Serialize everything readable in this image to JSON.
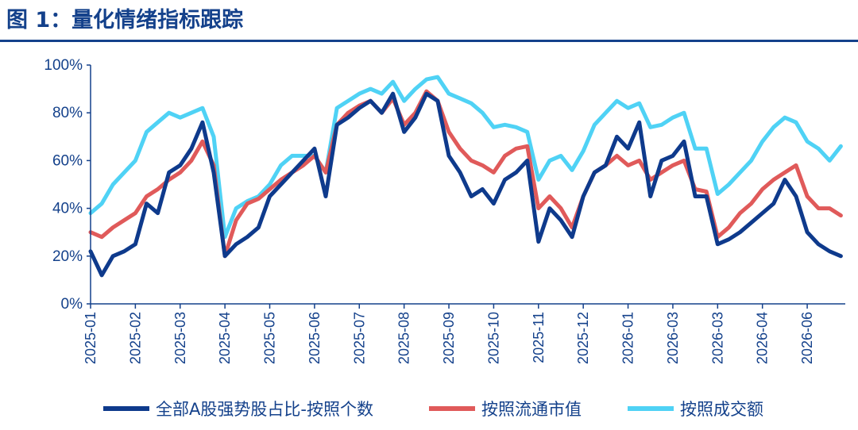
{
  "figure": {
    "title": "图 1：量化情绪指标跟踪"
  },
  "chart_data": {
    "type": "line",
    "title": "",
    "xlabel": "",
    "ylabel": "",
    "ylim": [
      0,
      100
    ],
    "y_ticks": [
      "0%",
      "20%",
      "40%",
      "60%",
      "80%",
      "100%"
    ],
    "x_ticks": [
      "2025-01",
      "2025-02",
      "2025-03",
      "2025-04",
      "2025-05",
      "2025-06",
      "2025-07",
      "2025-08",
      "2025-09",
      "2025-10",
      "2025-11",
      "2025-12",
      "2026-01",
      "2026-03",
      "2026-03",
      "2026-04",
      "2026-06"
    ],
    "legend_position": "bottom",
    "x": [
      0,
      0.25,
      0.5,
      0.75,
      1,
      1.25,
      1.5,
      1.75,
      2,
      2.25,
      2.5,
      2.75,
      3,
      3.25,
      3.5,
      3.75,
      4,
      4.25,
      4.5,
      4.75,
      5,
      5.25,
      5.5,
      5.75,
      6,
      6.25,
      6.5,
      6.75,
      7,
      7.25,
      7.5,
      7.75,
      8,
      8.25,
      8.5,
      8.75,
      9,
      9.25,
      9.5,
      9.75,
      10,
      10.25,
      10.5,
      10.75,
      11,
      11.25,
      11.5,
      11.75,
      12,
      12.25,
      12.5,
      12.75,
      13,
      13.25,
      13.5,
      13.75,
      14,
      14.25,
      14.5,
      14.75,
      15,
      15.25,
      15.5,
      15.75,
      16,
      16.25,
      16.5,
      16.75
    ],
    "series": [
      {
        "name": "全部A股强势股占比-按照个数",
        "color": "#0e3a8c",
        "values": [
          22,
          12,
          20,
          22,
          25,
          42,
          38,
          55,
          58,
          65,
          76,
          55,
          20,
          25,
          28,
          32,
          45,
          50,
          55,
          60,
          65,
          45,
          75,
          78,
          82,
          85,
          80,
          88,
          72,
          78,
          88,
          85,
          62,
          55,
          45,
          48,
          42,
          52,
          55,
          60,
          26,
          40,
          35,
          28,
          45,
          55,
          58,
          70,
          65,
          76,
          45,
          60,
          62,
          68,
          45,
          45,
          25,
          27,
          30,
          34,
          38,
          42,
          52,
          45,
          30,
          25,
          22,
          20
        ],
        "fill": false
      },
      {
        "name": "按照流通市值",
        "color": "#e05a5a",
        "values": [
          30,
          28,
          32,
          35,
          38,
          45,
          48,
          52,
          55,
          60,
          68,
          58,
          20,
          35,
          42,
          44,
          48,
          52,
          55,
          58,
          62,
          55,
          75,
          80,
          83,
          85,
          80,
          86,
          75,
          80,
          89,
          85,
          72,
          65,
          60,
          58,
          55,
          62,
          65,
          66,
          40,
          45,
          40,
          32,
          45,
          55,
          58,
          62,
          58,
          60,
          52,
          55,
          58,
          60,
          48,
          47,
          28,
          32,
          38,
          42,
          48,
          52,
          55,
          58,
          45,
          40,
          40,
          37
        ],
        "fill": false
      },
      {
        "name": "按照成交额",
        "color": "#4fd2f5",
        "values": [
          38,
          42,
          50,
          55,
          60,
          72,
          76,
          80,
          78,
          80,
          82,
          70,
          28,
          40,
          43,
          45,
          50,
          58,
          62,
          62,
          62,
          55,
          82,
          85,
          88,
          90,
          88,
          93,
          85,
          90,
          94,
          95,
          88,
          86,
          84,
          80,
          74,
          75,
          74,
          72,
          52,
          60,
          62,
          56,
          64,
          75,
          80,
          85,
          82,
          84,
          74,
          75,
          78,
          80,
          65,
          65,
          46,
          50,
          55,
          60,
          68,
          74,
          78,
          76,
          68,
          65,
          60,
          66
        ],
        "fill": false
      }
    ]
  }
}
